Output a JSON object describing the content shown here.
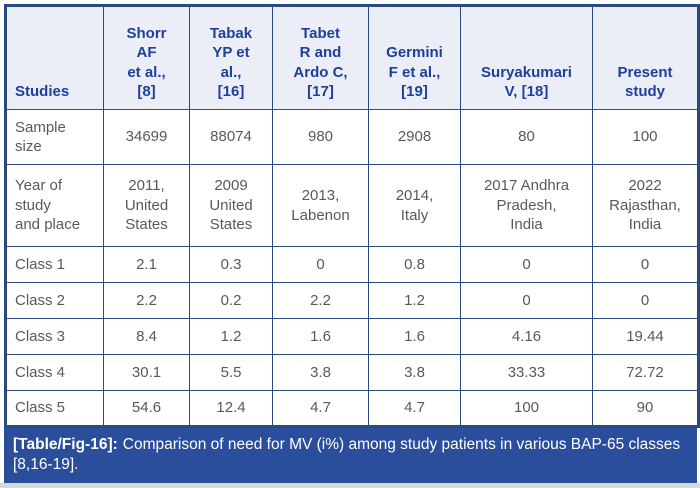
{
  "table": {
    "header": {
      "row_label_col": "Studies",
      "columns": [
        "Shorr\nAF\net al.,\n[8]",
        "Tabak\nYP et\nal.,\n[16]",
        "Tabet\nR and\nArdo C,\n[17]",
        "Germini\nF et al.,\n[19]",
        "Suryakumari\nV, [18]",
        "Present\nstudy"
      ]
    },
    "rows": [
      {
        "label": "Sample\nsize",
        "values": [
          "34699",
          "88074",
          "980",
          "2908",
          "80",
          "100"
        ]
      },
      {
        "label": "Year of\nstudy\nand place",
        "values": [
          "2011,\nUnited\nStates",
          "2009\nUnited\nStates",
          "2013,\nLabenon",
          "2014,\nItaly",
          "2017 Andhra\nPradesh,\nIndia",
          "2022\nRajasthan,\nIndia"
        ]
      },
      {
        "label": "Class 1",
        "values": [
          "2.1",
          "0.3",
          "0",
          "0.8",
          "0",
          "0"
        ]
      },
      {
        "label": "Class 2",
        "values": [
          "2.2",
          "0.2",
          "2.2",
          "1.2",
          "0",
          "0"
        ]
      },
      {
        "label": "Class 3",
        "values": [
          "8.4",
          "1.2",
          "1.6",
          "1.6",
          "4.16",
          "19.44"
        ]
      },
      {
        "label": "Class 4",
        "values": [
          "30.1",
          "5.5",
          "3.8",
          "3.8",
          "33.33",
          "72.72"
        ]
      },
      {
        "label": "Class 5",
        "values": [
          "54.6",
          "12.4",
          "4.7",
          "4.7",
          "100",
          "90"
        ]
      }
    ],
    "caption": {
      "tag": "[Table/Fig-16]:",
      "text": "Comparison of need for MV (i%) among study patients in various BAP-65 classes [8,16-19]."
    },
    "colors": {
      "grid_border": "#2b4a7e",
      "header_background": "#ebeef7",
      "header_text": "#1e3f9b",
      "body_text": "#58595b",
      "caption_background": "#2a4e9b",
      "caption_text": "#ffffff"
    }
  },
  "chart_data": {
    "type": "table",
    "title": "[Table/Fig-16]: Comparison of need for MV (i%) among study patients in various BAP-65 classes [8,16-19].",
    "columns": [
      "Studies",
      "Shorr AF et al., [8]",
      "Tabak YP et al., [16]",
      "Tabet R and Ardo C, [17]",
      "Germini F et al., [19]",
      "Suryakumari V, [18]",
      "Present study"
    ],
    "rows": [
      [
        "Sample size",
        "34699",
        "88074",
        "980",
        "2908",
        "80",
        "100"
      ],
      [
        "Year of study and place",
        "2011, United States",
        "2009 United States",
        "2013, Labenon",
        "2014, Italy",
        "2017 Andhra Pradesh, India",
        "2022 Rajasthan, India"
      ],
      [
        "Class 1",
        "2.1",
        "0.3",
        "0",
        "0.8",
        "0",
        "0"
      ],
      [
        "Class 2",
        "2.2",
        "0.2",
        "2.2",
        "1.2",
        "0",
        "0"
      ],
      [
        "Class 3",
        "8.4",
        "1.2",
        "1.6",
        "1.6",
        "4.16",
        "19.44"
      ],
      [
        "Class 4",
        "30.1",
        "5.5",
        "3.8",
        "3.8",
        "33.33",
        "72.72"
      ],
      [
        "Class 5",
        "54.6",
        "12.4",
        "4.7",
        "4.7",
        "100",
        "90"
      ]
    ]
  }
}
